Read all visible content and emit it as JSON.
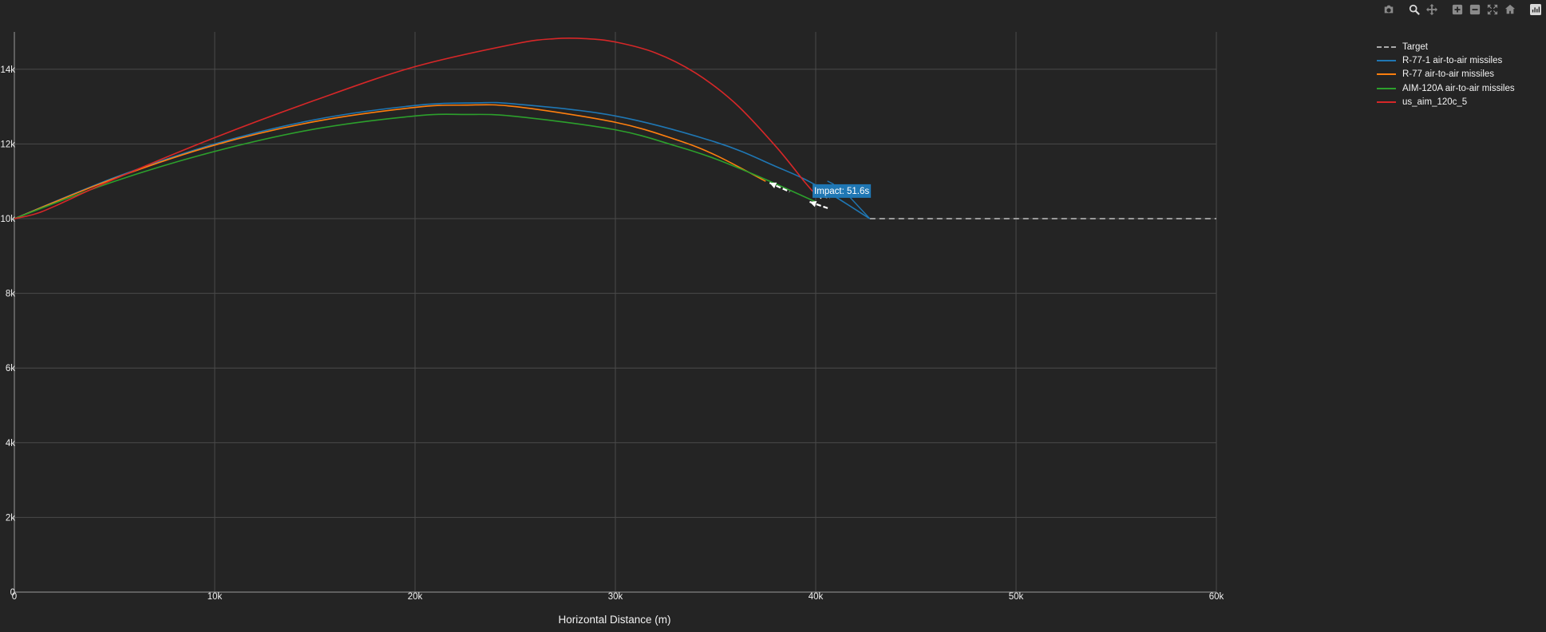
{
  "chart_data": {
    "type": "line",
    "xlabel": "Horizontal Distance (m)",
    "ylabel": "",
    "xlim": [
      0,
      60000
    ],
    "ylim": [
      0,
      15000
    ],
    "x_ticks": [
      0,
      10000,
      20000,
      30000,
      40000,
      50000,
      60000
    ],
    "x_tick_labels": [
      "0",
      "10k",
      "20k",
      "30k",
      "40k",
      "50k",
      "60k"
    ],
    "y_ticks": [
      0,
      2000,
      4000,
      6000,
      8000,
      10000,
      12000,
      14000
    ],
    "y_tick_labels": [
      "0",
      "2k",
      "4k",
      "6k",
      "8k",
      "10k",
      "12k",
      "14k"
    ],
    "grid": true,
    "legend_position": "top-right",
    "series": [
      {
        "name": "Target",
        "color": "#aaaaaa",
        "dash": "dashed",
        "x": [
          42700,
          60000
        ],
        "y": [
          10000,
          10000
        ]
      },
      {
        "name": "R-77-1 air-to-air missiles",
        "color": "#1f77b4",
        "dash": "solid",
        "x": [
          0,
          5000,
          10000,
          15000,
          20000,
          23000,
          25000,
          30000,
          35000,
          38000,
          40000,
          42700
        ],
        "y": [
          10000,
          11100,
          12000,
          12650,
          13030,
          13100,
          13070,
          12750,
          12050,
          11400,
          10900,
          10000
        ]
      },
      {
        "name": "R-77 air-to-air missiles",
        "color": "#ff7f0e",
        "dash": "solid",
        "x": [
          0,
          5000,
          10000,
          15000,
          20000,
          22500,
          25000,
          30000,
          33000,
          35000,
          37500
        ],
        "y": [
          10000,
          11080,
          11970,
          12600,
          12980,
          13040,
          13000,
          12580,
          12120,
          11700,
          11000
        ]
      },
      {
        "name": "AIM-120A air-to-air missiles",
        "color": "#2ca02c",
        "dash": "solid",
        "x": [
          0,
          5000,
          10000,
          15000,
          20000,
          22500,
          25000,
          30000,
          33000,
          35000,
          37500,
          40000
        ],
        "y": [
          10000,
          11000,
          11800,
          12400,
          12750,
          12790,
          12740,
          12380,
          11950,
          11600,
          11050,
          10450
        ]
      },
      {
        "name": "us_aim_120c_5",
        "color": "#d62728",
        "dash": "solid",
        "x": [
          0,
          1000,
          2000,
          5000,
          10000,
          15000,
          20000,
          25000,
          27000,
          28500,
          30000,
          32000,
          34000,
          36000,
          38000,
          39500,
          40000
        ],
        "y": [
          10000,
          10120,
          10330,
          11060,
          12170,
          13170,
          14070,
          14680,
          14820,
          14820,
          14730,
          14440,
          13900,
          13080,
          11940,
          10950,
          10650
        ]
      }
    ],
    "annotations": [
      {
        "text": "Impact: 51.6s",
        "x": 41300,
        "y": 10750,
        "color": "#1f77b4"
      }
    ]
  },
  "toolbar": {
    "buttons": [
      "camera-icon",
      "zoom-icon",
      "pan-icon",
      "zoom-in-icon",
      "zoom-out-icon",
      "autoscale-icon",
      "reset-axes-icon",
      "plotly-logo-icon"
    ]
  }
}
